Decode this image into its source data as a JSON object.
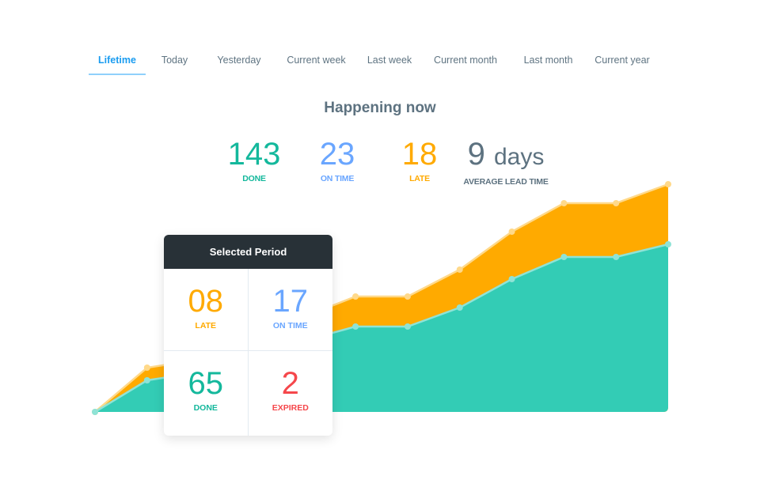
{
  "tabs": [
    {
      "label": "Lifetime",
      "active": true
    },
    {
      "label": "Today"
    },
    {
      "label": "Yesterday"
    },
    {
      "label": "Current week"
    },
    {
      "label": "Last week"
    },
    {
      "label": "Current month"
    },
    {
      "label": "Last month"
    },
    {
      "label": "Current year"
    }
  ],
  "header": {
    "title": "Happening now"
  },
  "stats": {
    "done": {
      "value": "143",
      "label": "DONE"
    },
    "on_time": {
      "value": "23",
      "label": "ON TIME"
    },
    "late": {
      "value": "18",
      "label": "LATE"
    },
    "lead_time": {
      "value": "9",
      "unit": "days",
      "label": "AVERAGE LEAD TIME"
    }
  },
  "selected_period": {
    "title": "Selected Period",
    "late": {
      "value": "08",
      "label": "LATE"
    },
    "on_time": {
      "value": "17",
      "label": "ON TIME"
    },
    "done": {
      "value": "65",
      "label": "DONE"
    },
    "expired": {
      "value": "2",
      "label": "EXPIRED"
    }
  },
  "colors": {
    "done": "#33ccb5",
    "late": "#ffaa00",
    "on_time": "#6aa6ff",
    "expired": "#f5474b",
    "lead_time": "#5d7280",
    "accent": "#1a9cf0"
  },
  "chart_data": {
    "type": "area",
    "stacked": true,
    "grid": false,
    "axes_visible": false,
    "series": [
      {
        "key": "done",
        "color": "#33ccb5",
        "values": [
          0,
          20,
          25,
          35,
          45,
          54,
          54,
          66,
          84,
          98,
          98,
          106
        ]
      },
      {
        "key": "late",
        "color": "#ffaa00",
        "values": [
          0,
          8,
          8,
          10,
          15,
          19,
          19,
          24,
          30,
          34,
          34,
          38
        ]
      }
    ]
  }
}
